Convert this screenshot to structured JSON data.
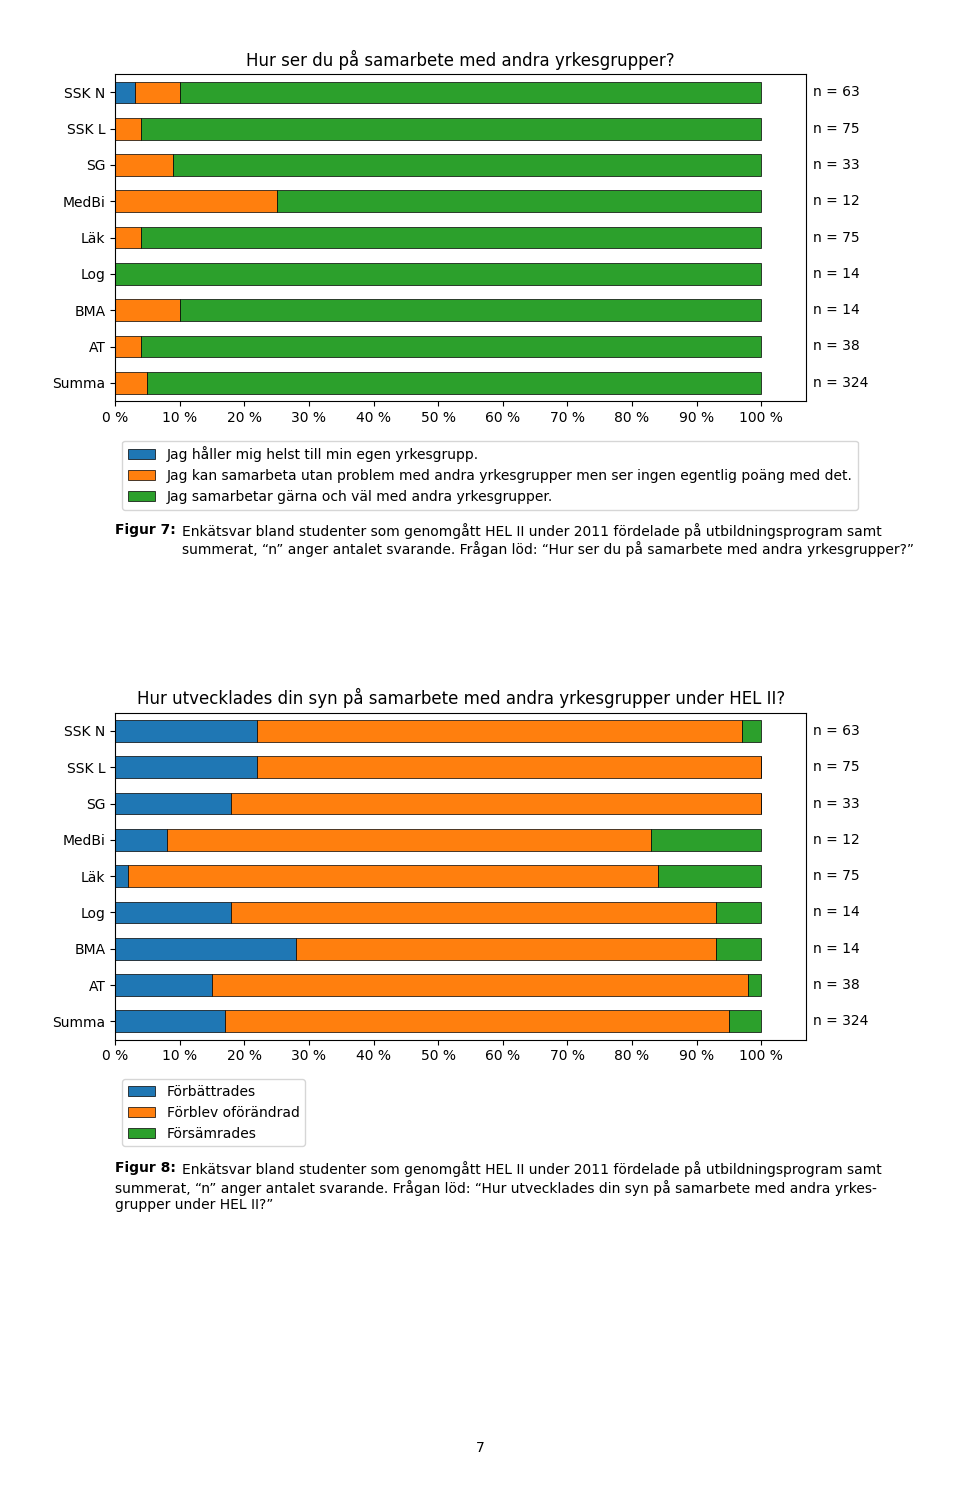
{
  "chart_data": [
    {
      "type": "bar",
      "orientation": "horizontal",
      "stacked": true,
      "grid": false,
      "legend": "upper left",
      "title": "Hur ser du på samarbete med andra yrkesgrupper?",
      "categories": [
        "SSK N",
        "SSK L",
        "SG",
        "MedBi",
        "Läk",
        "Log",
        "BMA",
        "AT",
        "Summa"
      ],
      "series": [
        {
          "name": "Jag håller mig helst till min egen yrkesgrupp.",
          "values": [
            3,
            0,
            0,
            0,
            0,
            0,
            0,
            0,
            0
          ]
        },
        {
          "name": "Jag kan samarbeta utan problem med andra yrkesgrupper men ser ingen egentlig poäng med det.",
          "values": [
            7,
            4,
            9,
            25,
            4,
            0,
            10,
            4,
            5
          ]
        },
        {
          "name": "Jag samarbetar gärna och väl med andra yrkesgrupper.",
          "values": [
            90,
            96,
            91,
            75,
            96,
            100,
            90,
            96,
            95
          ]
        }
      ],
      "xlim": [
        0,
        107
      ],
      "xticks": [
        {
          "value": 0,
          "label": "0 %"
        },
        {
          "value": 10,
          "label": "10 %"
        },
        {
          "value": 20,
          "label": "20 %"
        },
        {
          "value": 30,
          "label": "30 %"
        },
        {
          "value": 40,
          "label": "40 %"
        },
        {
          "value": 50,
          "label": "50 %"
        },
        {
          "value": 60,
          "label": "60 %"
        },
        {
          "value": 70,
          "label": "70 %"
        },
        {
          "value": 80,
          "label": "80 %"
        },
        {
          "value": 90,
          "label": "90 %"
        },
        {
          "value": 100,
          "label": "100 %"
        }
      ],
      "annotations": [
        "n = 63",
        "n = 75",
        "n = 33",
        "n = 12",
        "n = 75",
        "n = 14",
        "n = 14",
        "n = 38",
        "n = 324"
      ],
      "caption": {
        "label": "Figur 7:",
        "lines": [
          "Enkätsvar bland studenter som genomgått HEL II under 2011 fördelade på utbildningsprogram samt summerat, “n” anger antalet svarande. Frågan löd: “Hur ser du på samarbete med andra yrkesgrupper?”"
        ]
      }
    },
    {
      "type": "bar",
      "orientation": "horizontal",
      "stacked": true,
      "grid": false,
      "legend": "upper left",
      "title": "Hur utvecklades din syn på samarbete med andra yrkesgrupper under HEL II?",
      "categories": [
        "SSK N",
        "SSK L",
        "SG",
        "MedBi",
        "Läk",
        "Log",
        "BMA",
        "AT",
        "Summa"
      ],
      "series": [
        {
          "name": "Förbättrades",
          "values": [
            22,
            22,
            18,
            8,
            2,
            18,
            28,
            15,
            17
          ]
        },
        {
          "name": "Förblev oförändrad",
          "values": [
            75,
            78,
            82,
            75,
            82,
            75,
            65,
            83,
            78
          ]
        },
        {
          "name": "Försämrades",
          "values": [
            3,
            0,
            0,
            17,
            16,
            7,
            7,
            2,
            5
          ]
        }
      ],
      "xlim": [
        0,
        107
      ],
      "xticks": [
        {
          "value": 0,
          "label": "0 %"
        },
        {
          "value": 10,
          "label": "10 %"
        },
        {
          "value": 20,
          "label": "20 %"
        },
        {
          "value": 30,
          "label": "30 %"
        },
        {
          "value": 40,
          "label": "40 %"
        },
        {
          "value": 50,
          "label": "50 %"
        },
        {
          "value": 60,
          "label": "60 %"
        },
        {
          "value": 70,
          "label": "70 %"
        },
        {
          "value": 80,
          "label": "80 %"
        },
        {
          "value": 90,
          "label": "90 %"
        },
        {
          "value": 100,
          "label": "100 %"
        }
      ],
      "annotations": [
        "n = 63",
        "n = 75",
        "n = 33",
        "n = 12",
        "n = 75",
        "n = 14",
        "n = 14",
        "n = 38",
        "n = 324"
      ],
      "caption": {
        "label": "Figur 8:",
        "lines": [
          "Enkätsvar bland studenter som genomgått HEL II under 2011 fördelade på utbildningsprogram samt",
          "summerat, “n” anger antalet svarande. Frågan löd: “Hur utvecklades din syn på samarbete med andra yrkes-",
          "grupper under HEL II?”"
        ]
      }
    }
  ],
  "page_number": "7"
}
